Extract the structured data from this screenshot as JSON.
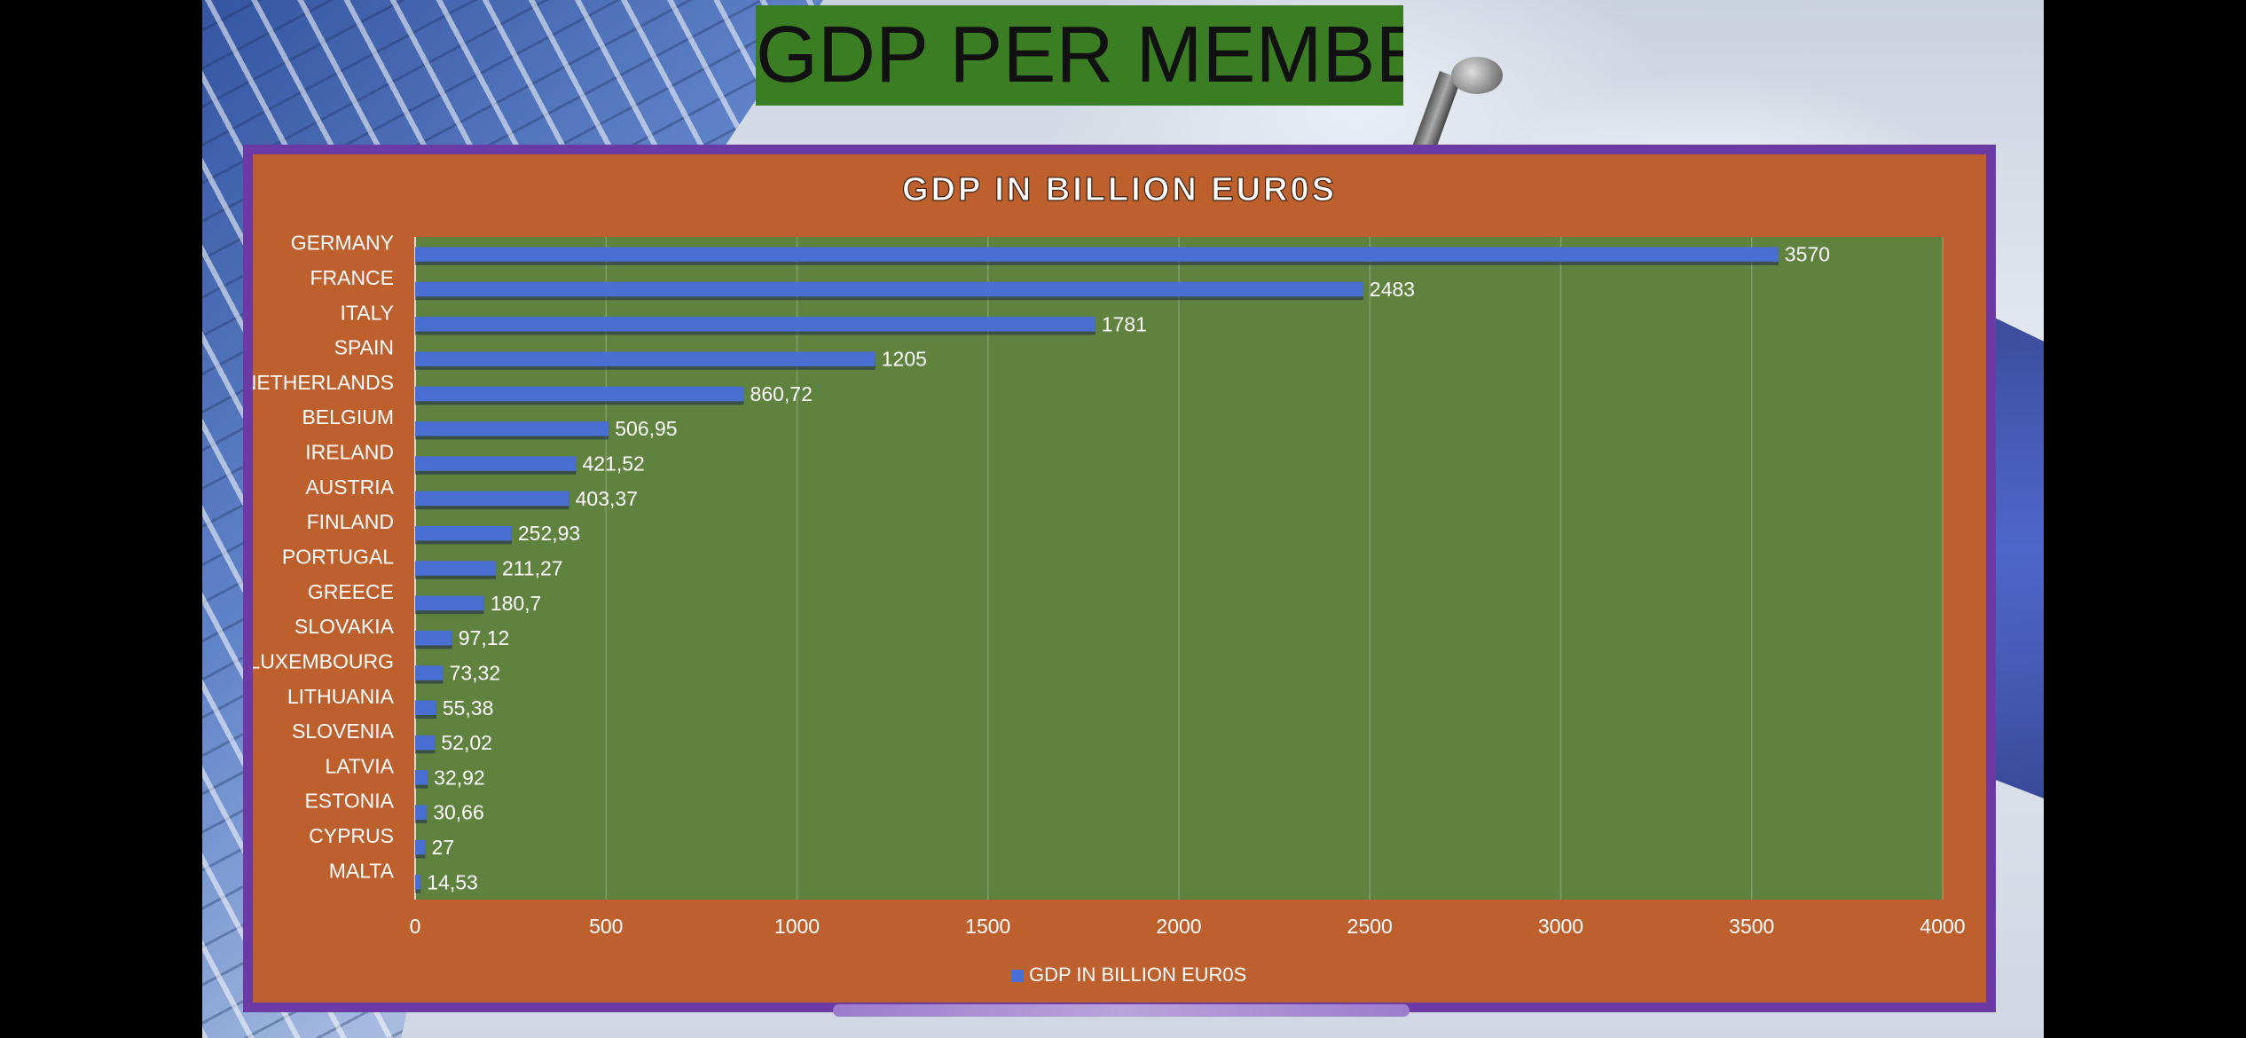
{
  "slide_title": "GDP PER MEMBER.",
  "colors": {
    "title_box": "#3b7d23",
    "chart_frame": "#6c3aa5",
    "chart_background": "#bd602d",
    "plot_area": "#5f823e",
    "bar": "#4a6fd3",
    "text": "#ffffff"
  },
  "chart_data": {
    "type": "bar",
    "orientation": "horizontal",
    "title": "GDP IN BILLION EUR0S",
    "categories": [
      "GERMANY",
      "FRANCE",
      "ITALY",
      "SPAIN",
      "NETHERLANDS",
      "BELGIUM",
      "IRELAND",
      "AUSTRIA",
      "FINLAND",
      "PORTUGAL",
      "GREECE",
      "SLOVAKIA",
      "LUXEMBOURG",
      "LITHUANIA",
      "SLOVENIA",
      "LATVIA",
      "ESTONIA",
      "CYPRUS",
      "MALTA"
    ],
    "series": [
      {
        "name": "GDP IN BILLION EUR0S",
        "values": [
          3570,
          2483,
          1781,
          1205,
          860.72,
          506.95,
          421.52,
          403.37,
          252.93,
          211.27,
          180.7,
          97.12,
          73.32,
          55.38,
          52.02,
          32.92,
          30.66,
          27,
          14.53
        ],
        "labels": [
          "3570",
          "2483",
          "1781",
          "1205",
          "860,72",
          "506,95",
          "421,52",
          "403,37",
          "252,93",
          "211,27",
          "180,7",
          "97,12",
          "73,32",
          "55,38",
          "52,02",
          "32,92",
          "30,66",
          "27",
          "14,53"
        ]
      }
    ],
    "xlim": [
      0,
      4000
    ],
    "xticks": [
      0,
      500,
      1000,
      1500,
      2000,
      2500,
      3000,
      3500,
      4000
    ],
    "xtick_labels": [
      "0",
      "500",
      "1000",
      "1500",
      "2000",
      "2500",
      "3000",
      "3500",
      "4000"
    ],
    "grid": true,
    "legend_position": "bottom"
  }
}
